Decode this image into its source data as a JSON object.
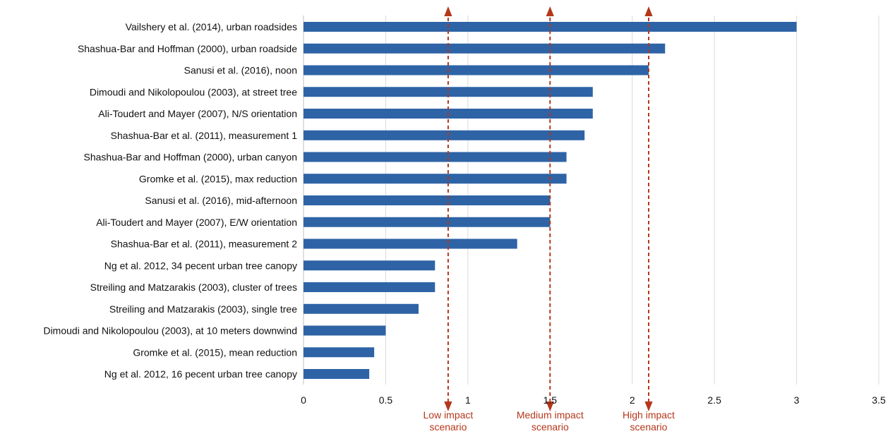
{
  "chart_data": {
    "type": "bar",
    "orientation": "horizontal",
    "categories": [
      "Vailshery et al. (2014), urban roadsides",
      "Shashua-Bar and Hoffman (2000), urban roadside",
      "Sanusi et al. (2016), noon",
      "Dimoudi and Nikolopoulou (2003), at street tree",
      "Ali-Toudert and Mayer (2007), N/S orientation",
      "Shashua-Bar et al. (2011), measurement 1",
      "Shashua-Bar and Hoffman (2000), urban canyon",
      "Gromke et al. (2015), max reduction",
      "Sanusi et al. (2016), mid-afternoon",
      "Ali-Toudert and Mayer (2007), E/W orientation",
      "Shashua-Bar et al. (2011), measurement 2",
      "Ng et al. 2012, 34 pecent urban tree canopy",
      "Streiling and Matzarakis (2003), cluster of trees",
      "Streiling and Matzarakis (2003), single tree",
      "Dimoudi and Nikolopoulou (2003), at 10 meters downwind",
      "Gromke et al. (2015), mean reduction",
      "Ng et al. 2012, 16 pecent urban tree canopy"
    ],
    "values": [
      3.0,
      2.2,
      2.1,
      1.76,
      1.76,
      1.71,
      1.6,
      1.6,
      1.5,
      1.5,
      1.3,
      0.8,
      0.8,
      0.7,
      0.5,
      0.43,
      0.4
    ],
    "xlim": [
      0,
      3.5
    ],
    "xticks": [
      "0",
      "0.5",
      "1",
      "1.5",
      "2",
      "2.5",
      "3",
      "3.5"
    ],
    "xtick_values": [
      0,
      0.5,
      1,
      1.5,
      2,
      2.5,
      3,
      3.5
    ],
    "grid": "vertical",
    "bar_color": "#2E63A6",
    "annotations": [
      {
        "x": 0.88,
        "label": [
          "Low impact",
          "scenario"
        ]
      },
      {
        "x": 1.5,
        "label": [
          "Medium impact",
          "scenario"
        ]
      },
      {
        "x": 2.1,
        "label": [
          "High impact",
          "scenario"
        ]
      }
    ],
    "annotation_color": "#B5371B",
    "grid_color": "#D9D9D9",
    "text_color": "#111111"
  }
}
